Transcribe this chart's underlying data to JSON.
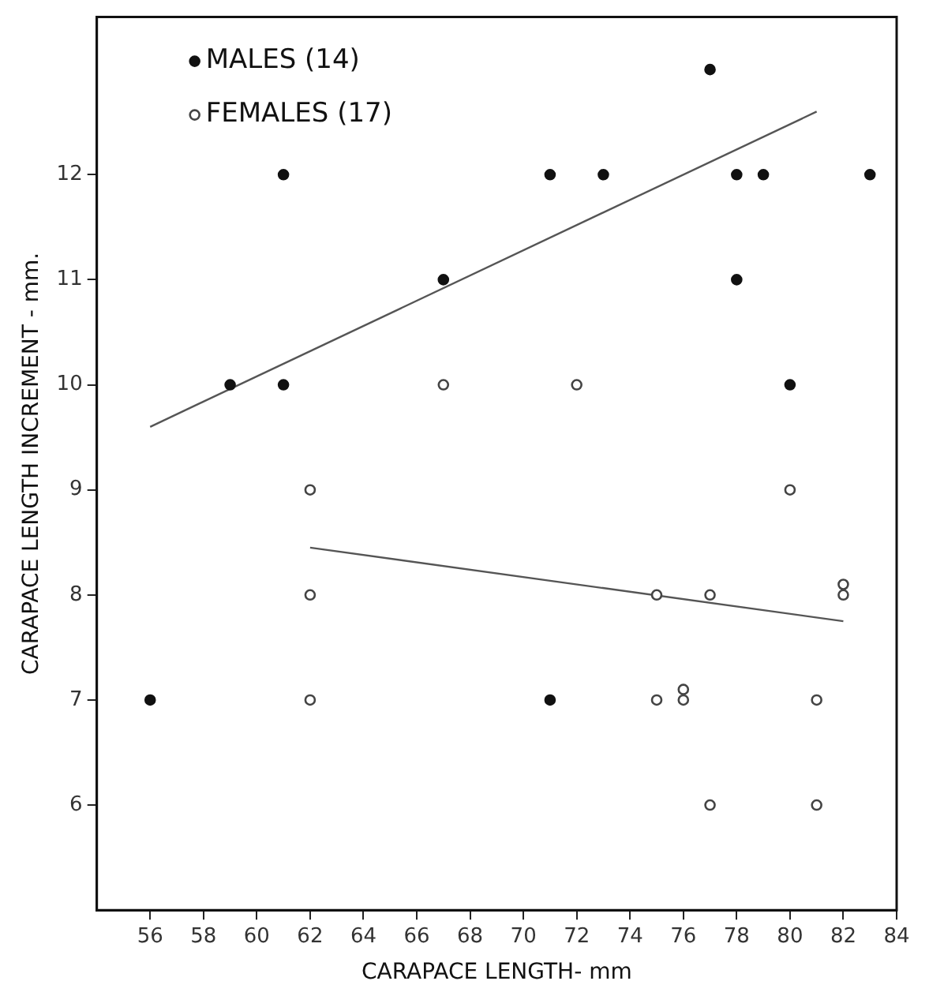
{
  "chart_data": {
    "type": "scatter",
    "xlabel": "CARAPACE LENGTH- mm",
    "ylabel": "CARAPACE LENGTH INCREMENT - mm.",
    "xlim": [
      54,
      84
    ],
    "ylim": [
      5,
      13.5
    ],
    "xticks": [
      56,
      58,
      60,
      62,
      64,
      66,
      68,
      70,
      72,
      74,
      76,
      78,
      80,
      82,
      84
    ],
    "yticks": [
      6,
      7,
      8,
      9,
      10,
      11,
      12
    ],
    "grid": false,
    "legend": "top left",
    "marker": "circle",
    "series": [
      {
        "name": "MALES (14)",
        "color": "#111111",
        "x": [
          56,
          59,
          61,
          61,
          67,
          71,
          71,
          73,
          77,
          78,
          78,
          79,
          80,
          83
        ],
        "values": [
          7,
          10,
          10,
          12,
          11,
          12,
          7,
          12,
          13,
          12,
          11,
          12,
          10,
          12
        ]
      },
      {
        "name": "FEMALES (17)",
        "color": "#444444",
        "x": [
          62,
          62,
          62,
          67,
          72,
          75,
          75,
          76,
          76,
          77,
          77,
          80,
          81,
          81,
          82,
          82
        ],
        "values": [
          9,
          8,
          7,
          10,
          10,
          8,
          7,
          7.1,
          7,
          8,
          6,
          9,
          7,
          6,
          8.1,
          8
        ]
      },
      {
        "type": "line",
        "color": "#555555",
        "marker": "none",
        "x": [
          56,
          81
        ],
        "values": [
          9.6,
          12.6
        ]
      },
      {
        "type": "line",
        "color": "#555555",
        "marker": "none",
        "x": [
          62,
          82
        ],
        "values": [
          8.45,
          7.75
        ]
      }
    ]
  }
}
